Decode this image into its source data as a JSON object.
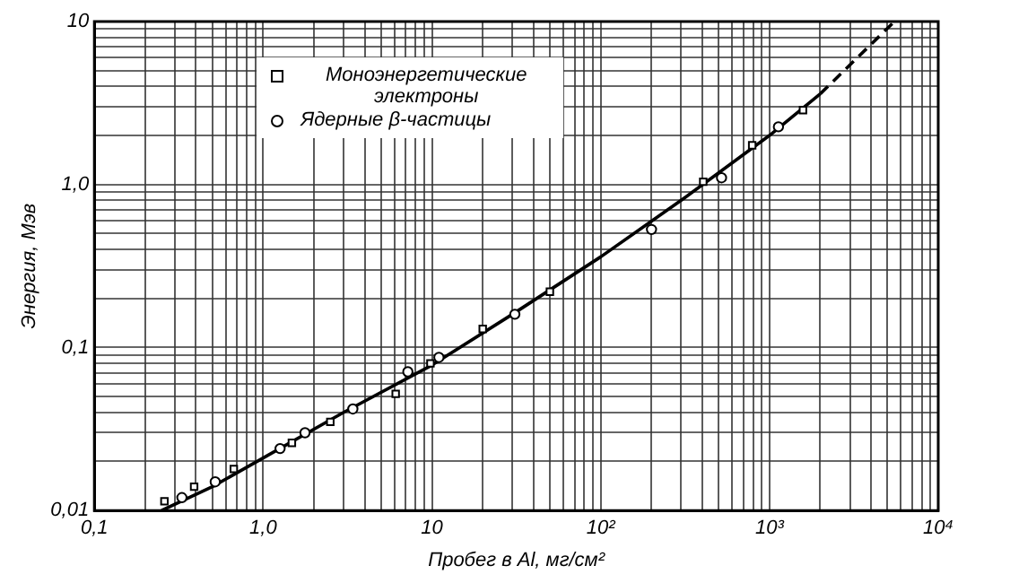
{
  "chart_data": {
    "type": "scatter",
    "xlabel": "Пробег в Al, мг/см²",
    "ylabel": "Энергия, Мэв",
    "log": "xy",
    "grid": true,
    "legend": "top left",
    "xlim": [
      0.1,
      10000
    ],
    "ylim": [
      0.01,
      10
    ],
    "xticks": [
      {
        "value": 0.1,
        "label": "0,1"
      },
      {
        "value": 0.2,
        "label": null
      },
      {
        "value": 0.3,
        "label": null
      },
      {
        "value": 0.4,
        "label": null
      },
      {
        "value": 0.5,
        "label": null
      },
      {
        "value": 0.6,
        "label": null
      },
      {
        "value": 0.7,
        "label": null
      },
      {
        "value": 0.8,
        "label": null
      },
      {
        "value": 0.9,
        "label": null
      },
      {
        "value": 1,
        "label": "1,0"
      },
      {
        "value": 2,
        "label": null
      },
      {
        "value": 3,
        "label": null
      },
      {
        "value": 4,
        "label": null
      },
      {
        "value": 5,
        "label": null
      },
      {
        "value": 6,
        "label": null
      },
      {
        "value": 7,
        "label": null
      },
      {
        "value": 8,
        "label": null
      },
      {
        "value": 9,
        "label": null
      },
      10,
      {
        "value": 20,
        "label": null
      },
      {
        "value": 30,
        "label": null
      },
      {
        "value": 40,
        "label": null
      },
      {
        "value": 50,
        "label": null
      },
      {
        "value": 60,
        "label": null
      },
      {
        "value": 70,
        "label": null
      },
      {
        "value": 80,
        "label": null
      },
      {
        "value": 90,
        "label": null
      },
      {
        "value": 100,
        "label": "10²"
      },
      {
        "value": 200,
        "label": null
      },
      {
        "value": 300,
        "label": null
      },
      {
        "value": 400,
        "label": null
      },
      {
        "value": 500,
        "label": null
      },
      {
        "value": 600,
        "label": null
      },
      {
        "value": 700,
        "label": null
      },
      {
        "value": 800,
        "label": null
      },
      {
        "value": 900,
        "label": null
      },
      {
        "value": 1000,
        "label": "10³"
      },
      {
        "value": 2000,
        "label": null
      },
      {
        "value": 3000,
        "label": null
      },
      {
        "value": 4000,
        "label": null
      },
      {
        "value": 5000,
        "label": null
      },
      {
        "value": 6000,
        "label": null
      },
      {
        "value": 7000,
        "label": null
      },
      {
        "value": 8000,
        "label": null
      },
      {
        "value": 9000,
        "label": null
      },
      {
        "value": 10000,
        "label": "10⁴"
      }
    ],
    "yticks": [
      {
        "value": 0.01,
        "label": "0,01"
      },
      {
        "value": 0.02,
        "label": null
      },
      {
        "value": 0.03,
        "label": null
      },
      {
        "value": 0.04,
        "label": null
      },
      {
        "value": 0.05,
        "label": null
      },
      {
        "value": 0.06,
        "label": null
      },
      {
        "value": 0.07,
        "label": null
      },
      {
        "value": 0.08,
        "label": null
      },
      {
        "value": 0.09,
        "label": null
      },
      {
        "value": 0.1,
        "label": "0,1"
      },
      {
        "value": 0.2,
        "label": null
      },
      {
        "value": 0.3,
        "label": null
      },
      {
        "value": 0.4,
        "label": null
      },
      {
        "value": 0.5,
        "label": null
      },
      {
        "value": 0.6,
        "label": null
      },
      {
        "value": 0.7,
        "label": null
      },
      {
        "value": 0.8,
        "label": null
      },
      {
        "value": 0.9,
        "label": null
      },
      {
        "value": 1,
        "label": "1,0"
      },
      {
        "value": 2,
        "label": null
      },
      {
        "value": 3,
        "label": null
      },
      {
        "value": 4,
        "label": null
      },
      {
        "value": 5,
        "label": null
      },
      {
        "value": 6,
        "label": null
      },
      {
        "value": 7,
        "label": null
      },
      {
        "value": 8,
        "label": null
      },
      {
        "value": 9,
        "label": null
      },
      10
    ],
    "series": [
      {
        "name": "Моноэнергетические электроны",
        "marker": "square",
        "color": "#000000",
        "x": [
          0.26,
          0.39,
          0.67,
          1.48,
          2.5,
          6.1,
          9.8,
          20,
          50,
          405,
          790,
          1580
        ],
        "values": [
          0.0114,
          0.014,
          0.018,
          0.026,
          0.035,
          0.052,
          0.08,
          0.13,
          0.22,
          1.04,
          1.74,
          2.86
        ]
      },
      {
        "name": "Ядерные β-частицы",
        "marker": "circle",
        "color": "#000000",
        "x": [
          0.33,
          0.52,
          1.26,
          1.77,
          3.4,
          7.2,
          11,
          31,
          200,
          520,
          1130
        ],
        "values": [
          0.012,
          0.015,
          0.024,
          0.03,
          0.042,
          0.071,
          0.087,
          0.16,
          0.53,
          1.1,
          2.26
        ]
      },
      {
        "type": "line",
        "marker": "none",
        "line_style": "solid",
        "color": "#000000",
        "x": [
          0.25,
          0.5,
          1,
          3,
          10,
          30,
          100,
          300,
          1000,
          2000
        ],
        "values": [
          0.01,
          0.014,
          0.021,
          0.04,
          0.078,
          0.16,
          0.36,
          0.8,
          2.0,
          3.6
        ]
      },
      {
        "type": "line",
        "marker": "none",
        "line_style": "dashed",
        "color": "#000000",
        "x": [
          2000,
          5500
        ],
        "values": [
          3.6,
          10
        ]
      }
    ]
  }
}
